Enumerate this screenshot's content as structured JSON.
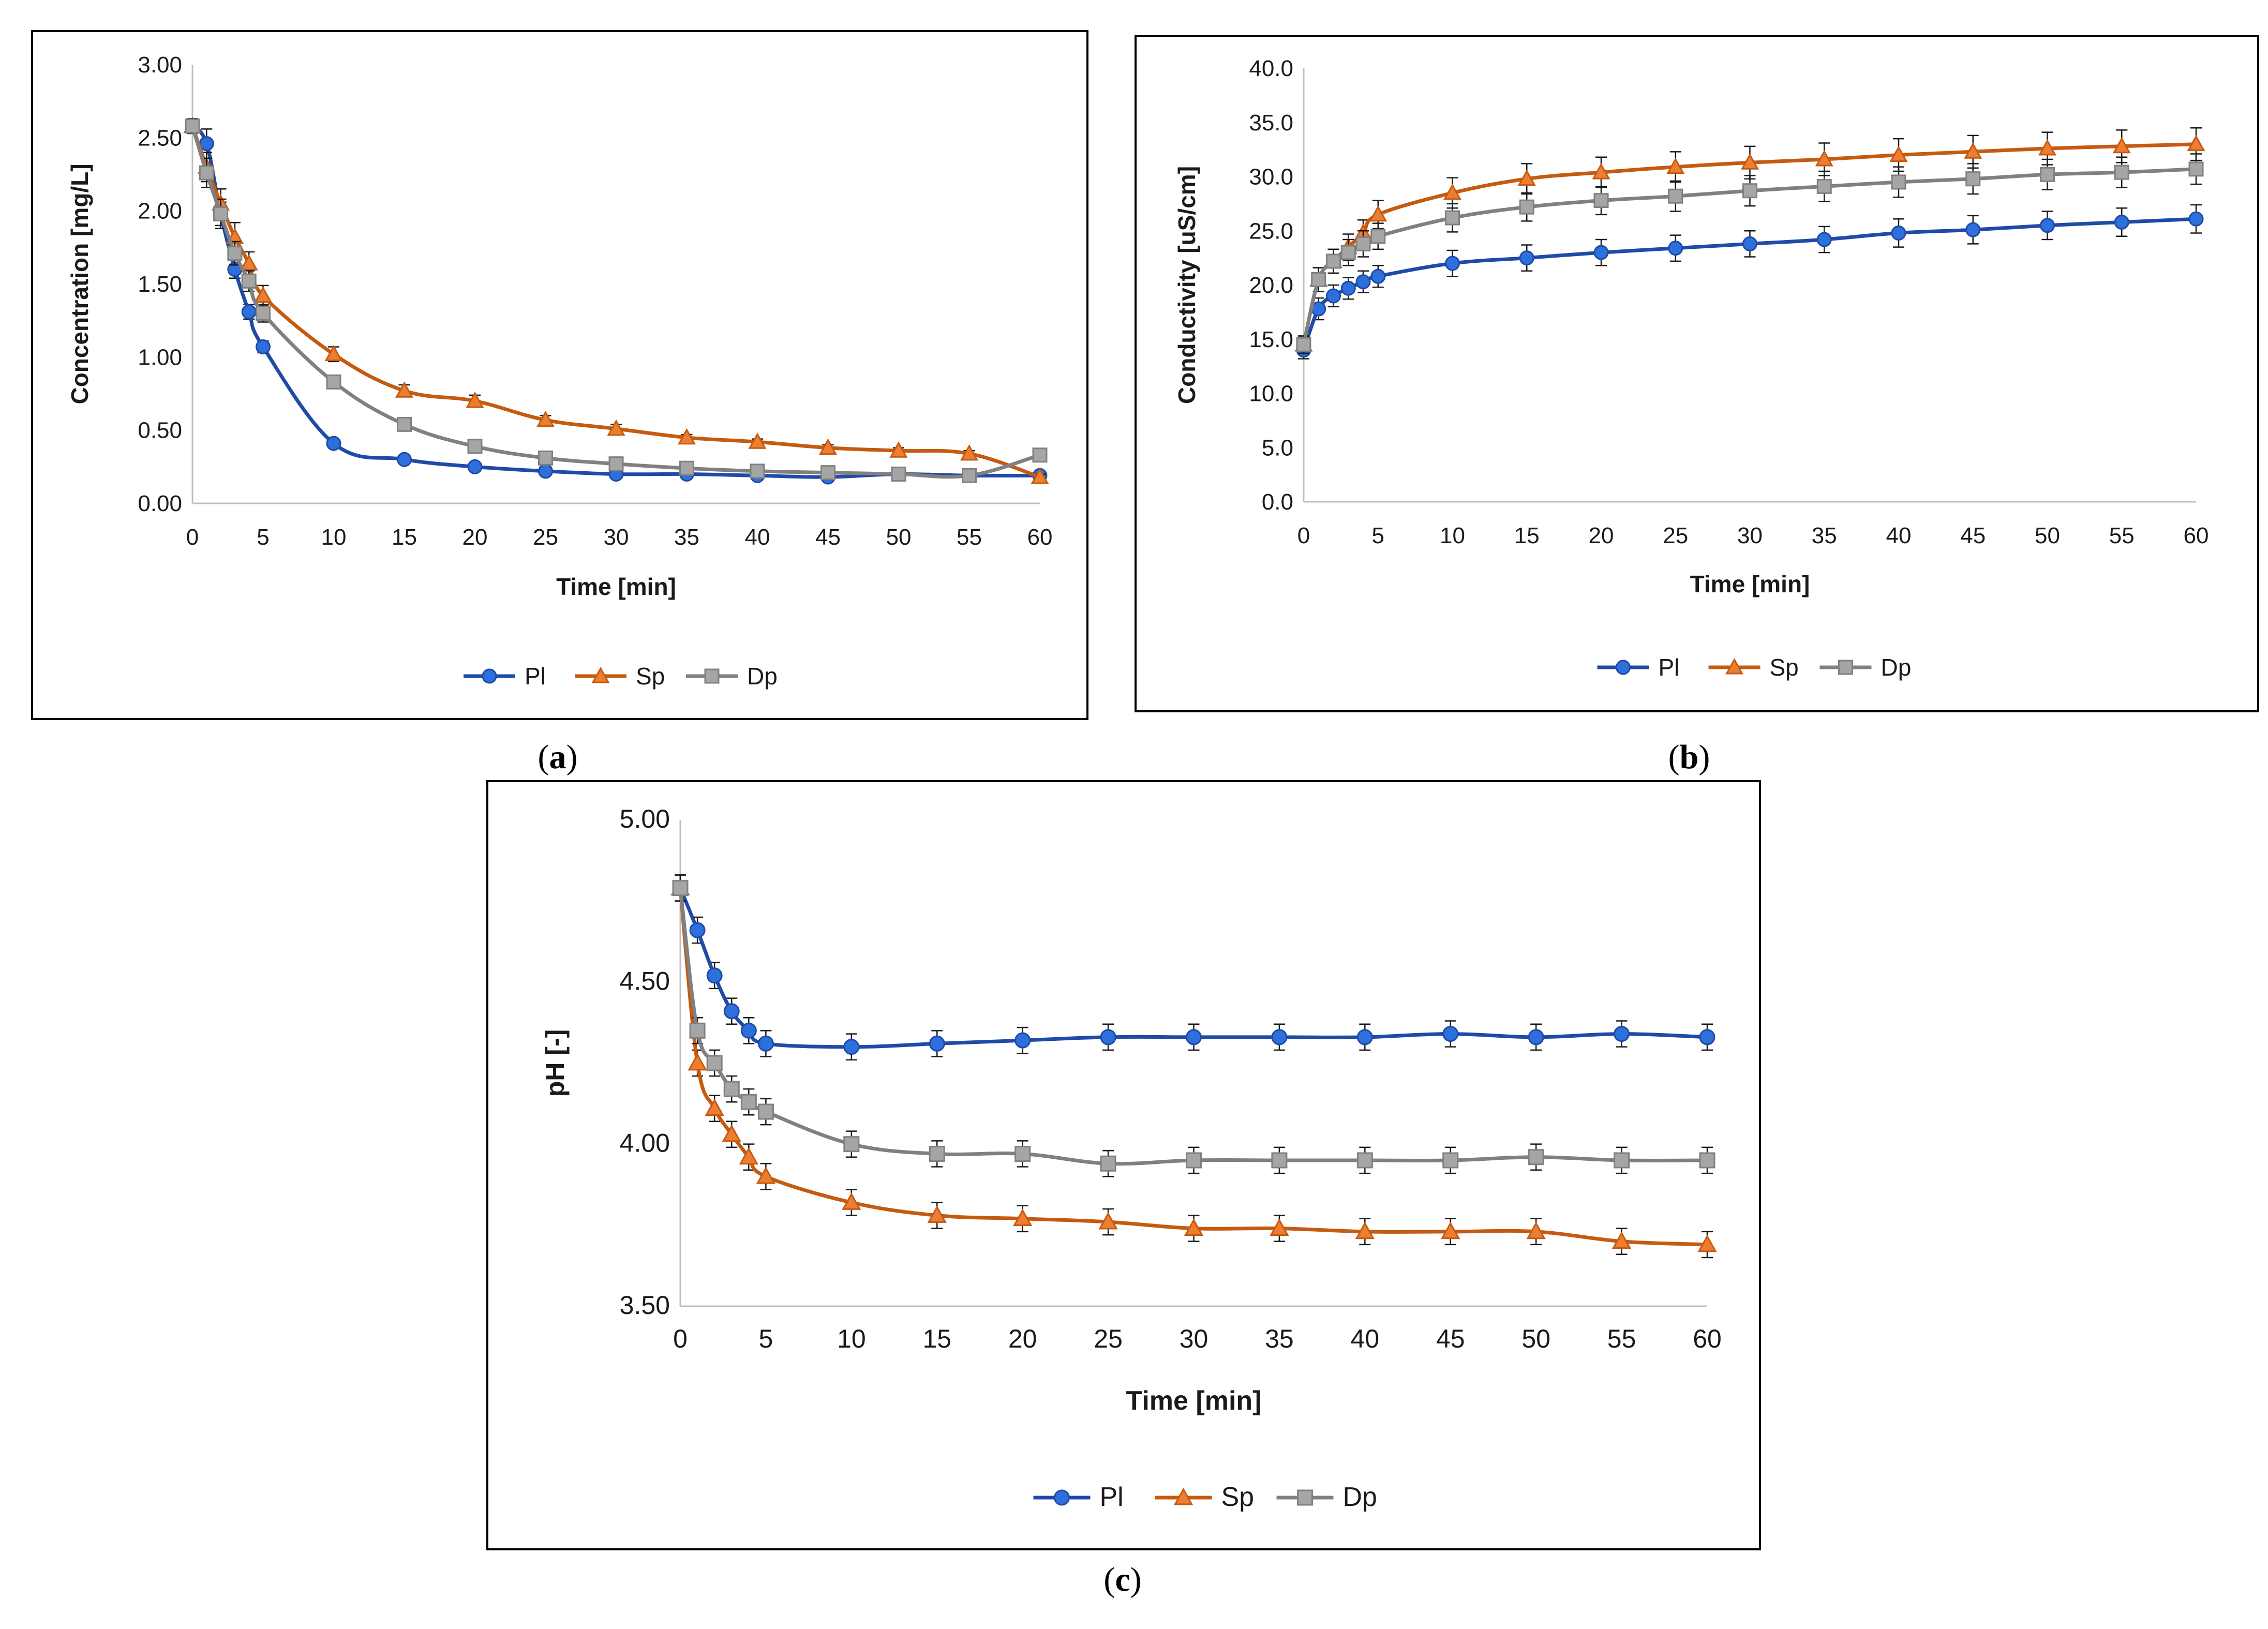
{
  "colors": {
    "Pl": "#1f4aa8",
    "Pl_marker": "#2d6fdb",
    "Sp": "#c55a11",
    "Sp_marker": "#ed7d31",
    "Dp": "#808080",
    "Dp_marker": "#a5a5a5"
  },
  "chart_data": [
    {
      "id": "a",
      "type": "line",
      "caption_letter": "a",
      "xlabel": "Time [min]",
      "ylabel": "Concentration [mg/L]",
      "x": [
        0,
        1,
        2,
        3,
        4,
        5,
        10,
        15,
        20,
        25,
        30,
        35,
        40,
        45,
        50,
        55,
        60
      ],
      "xticks": [
        "0",
        "5",
        "10",
        "15",
        "20",
        "25",
        "30",
        "35",
        "40",
        "45",
        "50",
        "55",
        "60"
      ],
      "xtick_values": [
        0,
        5,
        10,
        15,
        20,
        25,
        30,
        35,
        40,
        45,
        50,
        55,
        60
      ],
      "yticks": [
        "0.00",
        "0.50",
        "1.00",
        "1.50",
        "2.00",
        "2.50",
        "3.00"
      ],
      "ytick_values": [
        0,
        0.5,
        1.0,
        1.5,
        2.0,
        2.5,
        3.0
      ],
      "xlim": [
        0,
        60
      ],
      "ylim": [
        0,
        3.0
      ],
      "legend_position": "bottom-center",
      "series": [
        {
          "name": "Pl",
          "marker": "circle",
          "values": [
            2.58,
            2.46,
            1.98,
            1.6,
            1.31,
            1.07,
            0.41,
            0.3,
            0.25,
            0.22,
            0.2,
            0.2,
            0.19,
            0.18,
            0.2,
            0.19,
            0.19
          ],
          "errors": [
            0.05,
            0.1,
            0.08,
            0.06,
            0.05,
            0.04,
            0.02,
            0.02,
            0.02,
            0.02,
            0.02,
            0.02,
            0.02,
            0.02,
            0.02,
            0.02,
            0.02
          ]
        },
        {
          "name": "Sp",
          "marker": "triangle",
          "values": [
            2.58,
            2.3,
            2.05,
            1.82,
            1.64,
            1.42,
            1.02,
            0.77,
            0.7,
            0.57,
            0.51,
            0.45,
            0.42,
            0.38,
            0.36,
            0.34,
            0.18
          ],
          "errors": [
            0.05,
            0.1,
            0.1,
            0.1,
            0.08,
            0.07,
            0.05,
            0.04,
            0.04,
            0.03,
            0.03,
            0.02,
            0.02,
            0.02,
            0.02,
            0.02,
            0.02
          ]
        },
        {
          "name": "Dp",
          "marker": "square",
          "values": [
            2.58,
            2.26,
            1.98,
            1.71,
            1.52,
            1.3,
            0.83,
            0.54,
            0.39,
            0.31,
            0.27,
            0.24,
            0.22,
            0.21,
            0.2,
            0.19,
            0.33
          ],
          "errors": [
            0.05,
            0.1,
            0.1,
            0.08,
            0.07,
            0.06,
            0.04,
            0.03,
            0.02,
            0.02,
            0.02,
            0.02,
            0.02,
            0.02,
            0.02,
            0.02,
            0.02
          ]
        }
      ]
    },
    {
      "id": "b",
      "type": "line",
      "caption_letter": "b",
      "xlabel": "Time [min]",
      "ylabel": "Conductivity [uS/cm]",
      "x": [
        0,
        1,
        2,
        3,
        4,
        5,
        10,
        15,
        20,
        25,
        30,
        35,
        40,
        45,
        50,
        55,
        60
      ],
      "xticks": [
        "0",
        "5",
        "10",
        "15",
        "20",
        "25",
        "30",
        "35",
        "40",
        "45",
        "50",
        "55",
        "60"
      ],
      "xtick_values": [
        0,
        5,
        10,
        15,
        20,
        25,
        30,
        35,
        40,
        45,
        50,
        55,
        60
      ],
      "yticks": [
        "0.0",
        "5.0",
        "10.0",
        "15.0",
        "20.0",
        "25.0",
        "30.0",
        "35.0",
        "40.0"
      ],
      "ytick_values": [
        0,
        5,
        10,
        15,
        20,
        25,
        30,
        35,
        40
      ],
      "xlim": [
        0,
        60
      ],
      "ylim": [
        0,
        40
      ],
      "legend_position": "bottom-center",
      "series": [
        {
          "name": "Pl",
          "marker": "circle",
          "values": [
            14.0,
            17.8,
            19.0,
            19.7,
            20.3,
            20.8,
            22.0,
            22.5,
            23.0,
            23.4,
            23.8,
            24.2,
            24.8,
            25.1,
            25.5,
            25.8,
            26.1
          ],
          "errors": [
            0.8,
            1.0,
            1.0,
            1.0,
            1.0,
            1.0,
            1.2,
            1.2,
            1.2,
            1.2,
            1.2,
            1.2,
            1.3,
            1.3,
            1.3,
            1.3,
            1.3
          ]
        },
        {
          "name": "Sp",
          "marker": "triangle",
          "values": [
            14.5,
            20.5,
            22.2,
            23.5,
            24.8,
            26.5,
            28.5,
            29.8,
            30.4,
            30.9,
            31.3,
            31.6,
            32.0,
            32.3,
            32.6,
            32.8,
            33.0
          ],
          "errors": [
            0.8,
            1.1,
            1.1,
            1.2,
            1.2,
            1.3,
            1.4,
            1.4,
            1.4,
            1.4,
            1.5,
            1.5,
            1.5,
            1.5,
            1.5,
            1.5,
            1.5
          ]
        },
        {
          "name": "Dp",
          "marker": "square",
          "values": [
            14.5,
            20.5,
            22.2,
            23.0,
            23.8,
            24.5,
            26.2,
            27.2,
            27.8,
            28.2,
            28.7,
            29.1,
            29.5,
            29.8,
            30.2,
            30.4,
            30.7
          ],
          "errors": [
            0.8,
            1.1,
            1.1,
            1.2,
            1.2,
            1.2,
            1.3,
            1.3,
            1.3,
            1.4,
            1.4,
            1.4,
            1.4,
            1.4,
            1.4,
            1.4,
            1.4
          ]
        }
      ]
    },
    {
      "id": "c",
      "type": "line",
      "caption_letter": "c",
      "xlabel": "Time [min]",
      "ylabel": "pH [-]",
      "x": [
        0,
        1,
        2,
        3,
        4,
        5,
        10,
        15,
        20,
        25,
        30,
        35,
        40,
        45,
        50,
        55,
        60
      ],
      "xticks": [
        "0",
        "5",
        "10",
        "15",
        "20",
        "25",
        "30",
        "35",
        "40",
        "45",
        "50",
        "55",
        "60"
      ],
      "xtick_values": [
        0,
        5,
        10,
        15,
        20,
        25,
        30,
        35,
        40,
        45,
        50,
        55,
        60
      ],
      "yticks": [
        "3.50",
        "4.00",
        "4.50",
        "5.00"
      ],
      "ytick_values": [
        3.5,
        4.0,
        4.5,
        5.0
      ],
      "xlim": [
        0,
        60
      ],
      "ylim": [
        3.5,
        5.0
      ],
      "legend_position": "bottom-center",
      "series": [
        {
          "name": "Pl",
          "marker": "circle",
          "values": [
            4.79,
            4.66,
            4.52,
            4.41,
            4.35,
            4.31,
            4.3,
            4.31,
            4.32,
            4.33,
            4.33,
            4.33,
            4.33,
            4.34,
            4.33,
            4.34,
            4.33
          ],
          "errors": [
            0.04,
            0.04,
            0.04,
            0.04,
            0.04,
            0.04,
            0.04,
            0.04,
            0.04,
            0.04,
            0.04,
            0.04,
            0.04,
            0.04,
            0.04,
            0.04,
            0.04
          ]
        },
        {
          "name": "Sp",
          "marker": "triangle",
          "values": [
            4.79,
            4.25,
            4.11,
            4.03,
            3.96,
            3.9,
            3.82,
            3.78,
            3.77,
            3.76,
            3.74,
            3.74,
            3.73,
            3.73,
            3.73,
            3.7,
            3.69
          ],
          "errors": [
            0.04,
            0.04,
            0.04,
            0.04,
            0.04,
            0.04,
            0.04,
            0.04,
            0.04,
            0.04,
            0.04,
            0.04,
            0.04,
            0.04,
            0.04,
            0.04,
            0.04
          ]
        },
        {
          "name": "Dp",
          "marker": "square",
          "values": [
            4.79,
            4.35,
            4.25,
            4.17,
            4.13,
            4.1,
            4.0,
            3.97,
            3.97,
            3.94,
            3.95,
            3.95,
            3.95,
            3.95,
            3.96,
            3.95,
            3.95
          ],
          "errors": [
            0.04,
            0.04,
            0.04,
            0.04,
            0.04,
            0.04,
            0.04,
            0.04,
            0.04,
            0.04,
            0.04,
            0.04,
            0.04,
            0.04,
            0.04,
            0.04,
            0.04
          ]
        }
      ]
    }
  ]
}
